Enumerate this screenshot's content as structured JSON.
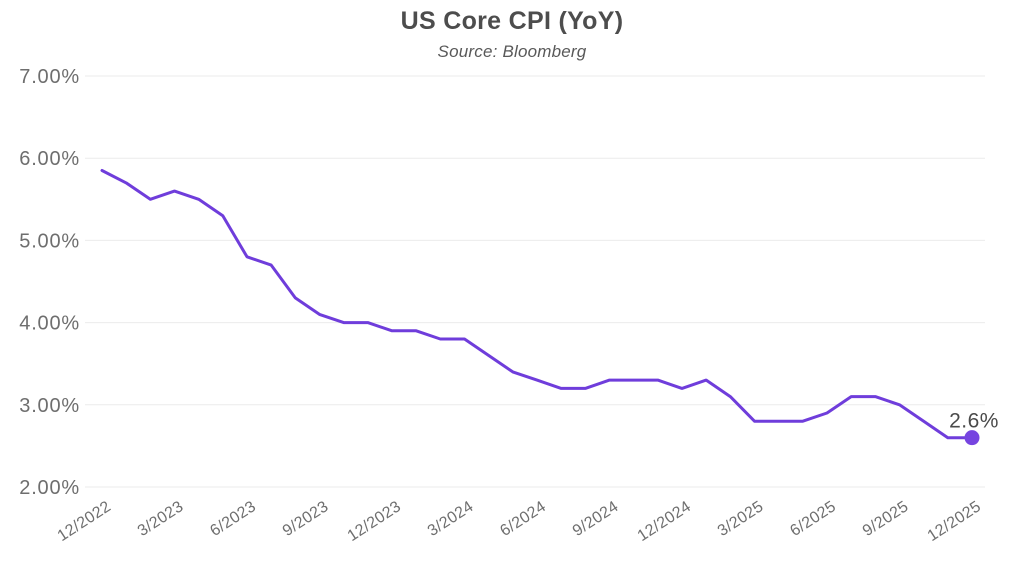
{
  "header": {
    "title": "US Core CPI (YoY)",
    "subtitle": "Source: Bloomberg"
  },
  "chart_data": {
    "type": "line",
    "title": "US Core CPI (YoY)",
    "subtitle": "Source: Bloomberg",
    "x": [
      "12/2022",
      "1/2023",
      "2/2023",
      "3/2023",
      "4/2023",
      "5/2023",
      "6/2023",
      "7/2023",
      "8/2023",
      "9/2023",
      "10/2023",
      "11/2023",
      "12/2023",
      "1/2024",
      "2/2024",
      "3/2024",
      "4/2024",
      "5/2024",
      "6/2024",
      "7/2024",
      "8/2024",
      "9/2024",
      "10/2024",
      "11/2024",
      "12/2024",
      "1/2025",
      "2/2025",
      "3/2025",
      "4/2025",
      "5/2025",
      "6/2025",
      "7/2025",
      "8/2025",
      "9/2025",
      "10/2025",
      "11/2025",
      "12/2025"
    ],
    "series": [
      {
        "name": "US Core CPI YoY",
        "values": [
          5.85,
          5.7,
          5.5,
          5.6,
          5.5,
          5.3,
          4.8,
          4.7,
          4.3,
          4.1,
          4.0,
          4.0,
          3.9,
          3.9,
          3.8,
          3.8,
          3.6,
          3.4,
          3.3,
          3.2,
          3.2,
          3.3,
          3.3,
          3.3,
          3.2,
          3.3,
          3.1,
          2.8,
          2.8,
          2.8,
          2.9,
          3.1,
          3.1,
          3.0,
          2.8,
          2.6,
          2.6
        ]
      }
    ],
    "x_tick_labels": [
      "12/2022",
      "3/2023",
      "6/2023",
      "9/2023",
      "12/2023",
      "3/2024",
      "6/2024",
      "9/2024",
      "12/2024",
      "3/2025",
      "6/2025",
      "9/2025",
      "12/2025"
    ],
    "x_tick_step": 3,
    "y_tick_labels": [
      "7.00%",
      "6.00%",
      "5.00%",
      "4.00%",
      "3.00%",
      "2.00%"
    ],
    "ylim": [
      2,
      7
    ],
    "grid": "horizontal",
    "legend": "none",
    "end_point_label": "2.6%",
    "colors": {
      "line": "#6F3DDB",
      "dot": "#7644E0",
      "grid": "#ebebeb",
      "axis_label": "#6e6e6e",
      "title": "#4d4d4d",
      "subtitle": "#595959",
      "end_label": "#4a4a4a",
      "background": "#ffffff"
    }
  }
}
